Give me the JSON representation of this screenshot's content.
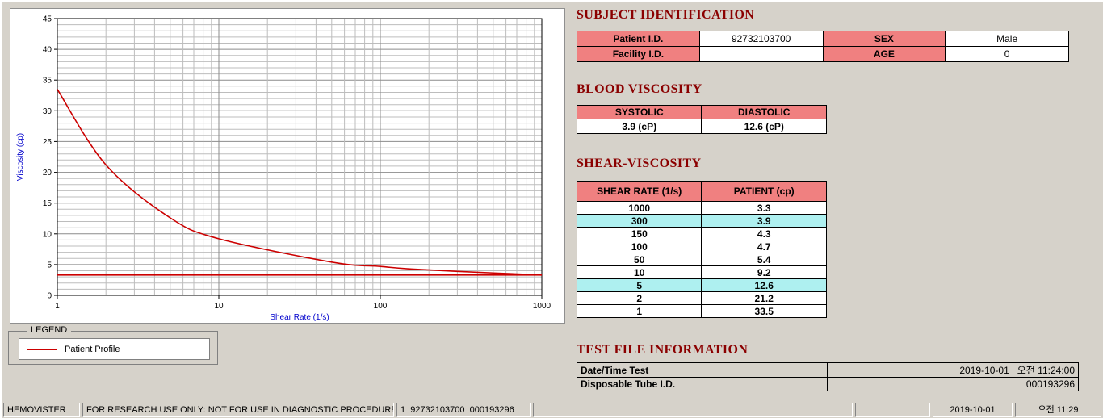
{
  "legend": {
    "title": "LEGEND",
    "entry": "Patient Profile"
  },
  "subject": {
    "title": "SUBJECT IDENTIFICATION",
    "rows": [
      {
        "label1": "Patient I.D.",
        "value1": "92732103700",
        "label2": "SEX",
        "value2": "Male"
      },
      {
        "label1": "Facility I.D.",
        "value1": "",
        "label2": "AGE",
        "value2": "0"
      }
    ]
  },
  "blood_viscosity": {
    "title": "BLOOD VISCOSITY",
    "headers": [
      "SYSTOLIC",
      "DIASTOLIC"
    ],
    "values": [
      "3.9 (cP)",
      "12.6 (cP)"
    ]
  },
  "shear_viscosity": {
    "title": "SHEAR-VISCOSITY",
    "headers": [
      "SHEAR RATE (1/s)",
      "PATIENT (cp)"
    ],
    "rows": [
      {
        "rate": "1000",
        "value": "3.3",
        "highlight": false
      },
      {
        "rate": "300",
        "value": "3.9",
        "highlight": true
      },
      {
        "rate": "150",
        "value": "4.3",
        "highlight": false
      },
      {
        "rate": "100",
        "value": "4.7",
        "highlight": false
      },
      {
        "rate": "50",
        "value": "5.4",
        "highlight": false
      },
      {
        "rate": "10",
        "value": "9.2",
        "highlight": false
      },
      {
        "rate": "5",
        "value": "12.6",
        "highlight": true
      },
      {
        "rate": "2",
        "value": "21.2",
        "highlight": false
      },
      {
        "rate": "1",
        "value": "33.5",
        "highlight": false
      }
    ]
  },
  "test_file": {
    "title": "TEST FILE INFORMATION",
    "rows": [
      {
        "label": "Date/Time Test",
        "value": "2019-10-01   오전 11:24:00"
      },
      {
        "label": "Disposable Tube I.D.",
        "value": "000193296"
      }
    ]
  },
  "statusbar": {
    "panels": [
      {
        "text": "HEMOVISTER",
        "align": "left"
      },
      {
        "text": "FOR RESEARCH USE ONLY: NOT FOR USE IN DIAGNOSTIC PROCEDURES",
        "align": "left"
      },
      {
        "text": "1  92732103700  000193296",
        "align": "left"
      },
      {
        "text": "",
        "align": "left"
      },
      {
        "text": "",
        "align": "left"
      },
      {
        "text": "2019-10-01",
        "align": "center"
      },
      {
        "text": "오전 11:29",
        "align": "center"
      }
    ]
  },
  "chart_data": {
    "type": "line",
    "title": "",
    "xlabel": "Shear Rate (1/s)",
    "ylabel": "Viscosity (cp)",
    "x_scale": "log",
    "xlim": [
      1,
      1000
    ],
    "ylim": [
      0,
      45
    ],
    "x_ticks": [
      1,
      10,
      100,
      1000
    ],
    "y_ticks": [
      0,
      5,
      10,
      15,
      20,
      25,
      30,
      35,
      40,
      45
    ],
    "grid": "on",
    "legend_position": "below-left",
    "series": [
      {
        "name": "Patient Profile",
        "color": "#cc0000",
        "x": [
          1,
          2,
          5,
          10,
          50,
          100,
          150,
          300,
          1000
        ],
        "y": [
          33.5,
          21.2,
          12.6,
          9.2,
          5.4,
          4.7,
          4.3,
          3.9,
          3.3
        ]
      },
      {
        "name": "baseline-reference-line",
        "color": "#cc0000",
        "x": [
          1,
          1000
        ],
        "y": [
          3.3,
          3.3
        ]
      }
    ],
    "colors": {
      "line": "#cc0000",
      "axis_label": "#0000cc",
      "header_accent": "#8b0000",
      "table_header_bg": "#f08080",
      "highlight_row_bg": "#aef0f0"
    }
  }
}
